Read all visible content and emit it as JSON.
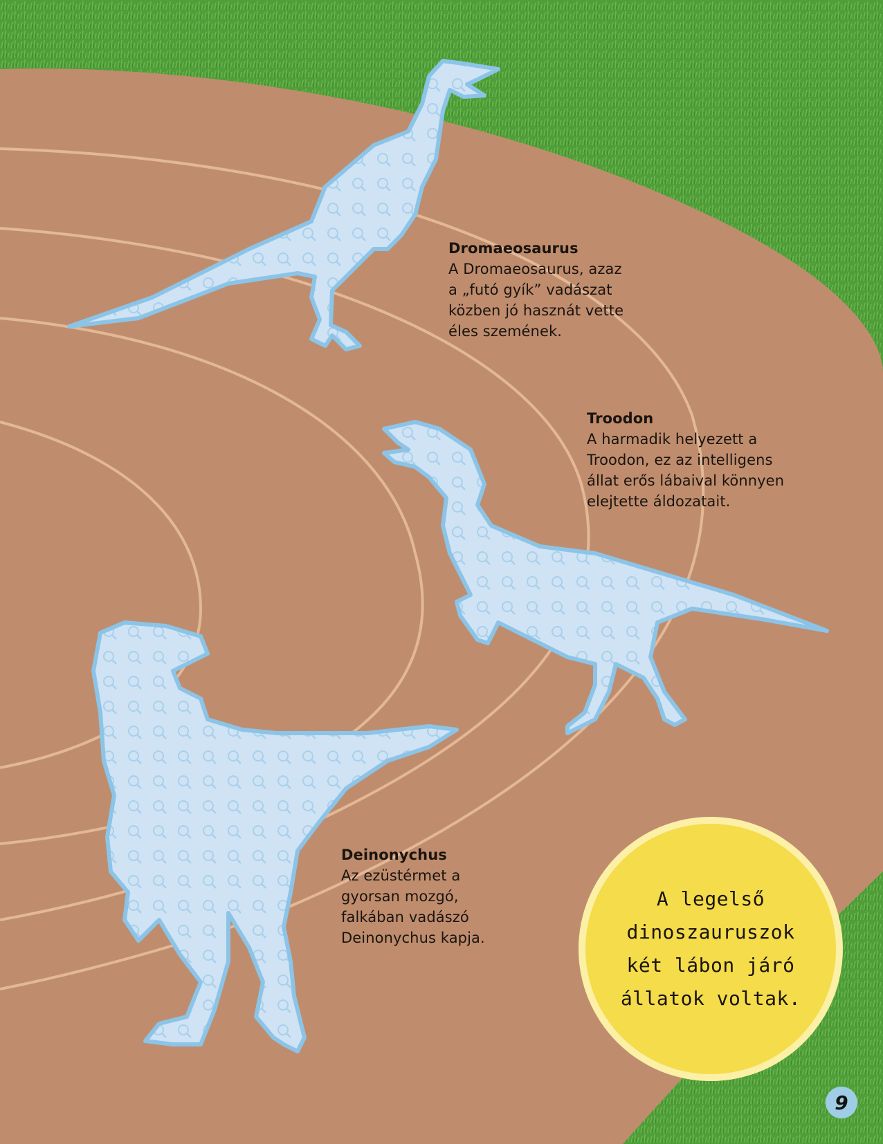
{
  "colors": {
    "grass": "#4f9e3a",
    "grass_light": "#6cb64d",
    "track": "#bf8d6d",
    "track_lane_line": "#e3b896",
    "silhouette_fill": "#cfe3f4",
    "silhouette_outline": "#8cc4e8",
    "fact_badge": "#f4dc4a",
    "page_number_badge": "#9fcde6"
  },
  "dinosaurs": [
    {
      "name": "Dromaeosaurus",
      "lines": [
        "A Dromaeosaurus, azaz",
        "a „futó gyík” vadászat",
        "közben jó hasznát vette",
        "éles szemének."
      ]
    },
    {
      "name": "Troodon",
      "lines": [
        "A harmadik helyezett a",
        "Troodon, ez az intelligens",
        "állat erős lábaival könnyen",
        "elejtette áldozatait."
      ]
    },
    {
      "name": "Deinonychus",
      "lines": [
        "Az ezüstérmet a",
        "gyorsan mozgó,",
        "falkában vadászó",
        "Deinonychus kapja."
      ]
    }
  ],
  "fact": {
    "lines": [
      "A legelső",
      "dinoszauruszok",
      "két lábon járó",
      "állatok voltak."
    ]
  },
  "page_number": "9"
}
